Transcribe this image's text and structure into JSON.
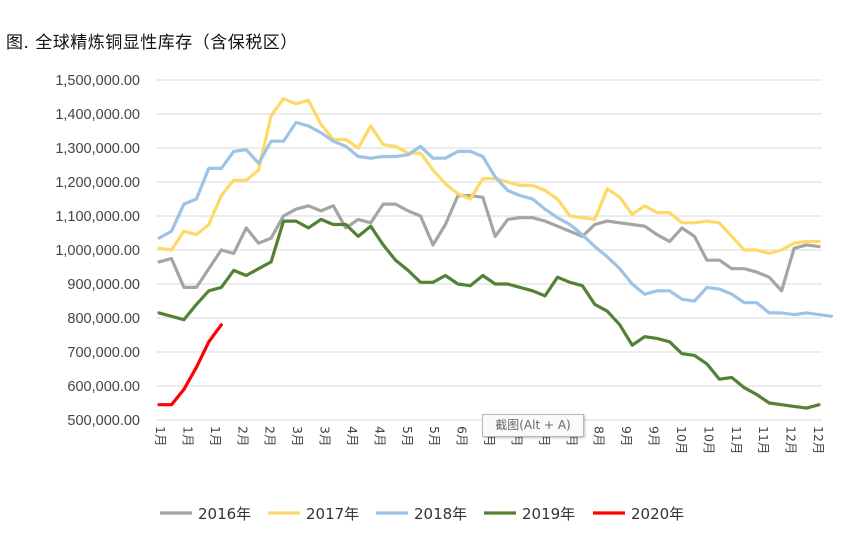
{
  "title": "图. 全球精炼铜显性库存（含保税区）",
  "tooltip": "截图(Alt + A)",
  "chart_data": {
    "type": "line",
    "ylim": [
      500000,
      1500000
    ],
    "y_ticks": [
      "1,500,000.00",
      "1,400,000.00",
      "1,300,000.00",
      "1,200,000.00",
      "1,100,000.00",
      "1,000,000.00",
      "900,000.00",
      "800,000.00",
      "700,000.00",
      "600,000.00",
      "500,000.00"
    ],
    "x_ticks": [
      "1月",
      "1月",
      "1月",
      "2月",
      "2月",
      "3月",
      "3月",
      "4月",
      "4月",
      "5月",
      "5月",
      "6月",
      "6月",
      "7月",
      "7月",
      "8月",
      "8月",
      "9月",
      "9月",
      "10月",
      "10月",
      "11月",
      "11月",
      "12月",
      "12月"
    ],
    "grid": "horizontal",
    "legend": "bottom",
    "colors": {
      "2016年": "#a5a5a5",
      "2017年": "#ffd966",
      "2018年": "#9dc3e6",
      "2019年": "#548235",
      "2020年": "#ff0000"
    },
    "series": [
      {
        "name": "2016年",
        "values": [
          965000,
          975000,
          890000,
          890000,
          945000,
          1000000,
          990000,
          1065000,
          1020000,
          1035000,
          1100000,
          1120000,
          1130000,
          1115000,
          1130000,
          1065000,
          1090000,
          1080000,
          1135000,
          1135000,
          1115000,
          1100000,
          1015000,
          1075000,
          1160000,
          1160000,
          1155000,
          1040000,
          1090000,
          1095000,
          1095000,
          1085000,
          1070000,
          1055000,
          1040000,
          1075000,
          1085000,
          1080000,
          1075000,
          1070000,
          1045000,
          1025000,
          1065000,
          1040000,
          970000,
          970000,
          945000,
          945000,
          935000,
          920000,
          880000,
          1005000,
          1015000,
          1010000
        ]
      },
      {
        "name": "2017年",
        "values": [
          1005000,
          1000000,
          1055000,
          1045000,
          1075000,
          1160000,
          1205000,
          1205000,
          1235000,
          1395000,
          1445000,
          1430000,
          1440000,
          1370000,
          1325000,
          1325000,
          1300000,
          1365000,
          1310000,
          1305000,
          1285000,
          1285000,
          1235000,
          1195000,
          1165000,
          1150000,
          1210000,
          1210000,
          1200000,
          1190000,
          1190000,
          1175000,
          1150000,
          1100000,
          1095000,
          1090000,
          1180000,
          1155000,
          1105000,
          1130000,
          1110000,
          1110000,
          1080000,
          1080000,
          1085000,
          1080000,
          1040000,
          1000000,
          1000000,
          990000,
          1000000,
          1020000,
          1025000,
          1025000
        ]
      },
      {
        "name": "2018年",
        "values": [
          1035000,
          1055000,
          1135000,
          1150000,
          1240000,
          1240000,
          1290000,
          1295000,
          1255000,
          1320000,
          1320000,
          1375000,
          1365000,
          1345000,
          1320000,
          1305000,
          1275000,
          1270000,
          1275000,
          1275000,
          1280000,
          1305000,
          1270000,
          1270000,
          1290000,
          1290000,
          1275000,
          1215000,
          1175000,
          1160000,
          1150000,
          1120000,
          1095000,
          1075000,
          1045000,
          1010000,
          980000,
          945000,
          900000,
          870000,
          880000,
          880000,
          855000,
          850000,
          890000,
          885000,
          870000,
          845000,
          845000,
          815000,
          815000,
          810000,
          815000,
          810000,
          805000
        ]
      },
      {
        "name": "2019年",
        "values": [
          815000,
          805000,
          795000,
          840000,
          880000,
          890000,
          940000,
          925000,
          945000,
          965000,
          1085000,
          1085000,
          1065000,
          1090000,
          1075000,
          1075000,
          1040000,
          1070000,
          1015000,
          970000,
          940000,
          905000,
          905000,
          925000,
          900000,
          895000,
          925000,
          900000,
          900000,
          890000,
          880000,
          865000,
          920000,
          905000,
          895000,
          840000,
          820000,
          780000,
          720000,
          745000,
          740000,
          730000,
          695000,
          690000,
          665000,
          620000,
          625000,
          595000,
          575000,
          550000,
          545000,
          540000,
          535000,
          545000
        ]
      },
      {
        "name": "2020年",
        "values": [
          545000,
          545000,
          590000,
          655000,
          730000,
          780000
        ]
      }
    ]
  }
}
